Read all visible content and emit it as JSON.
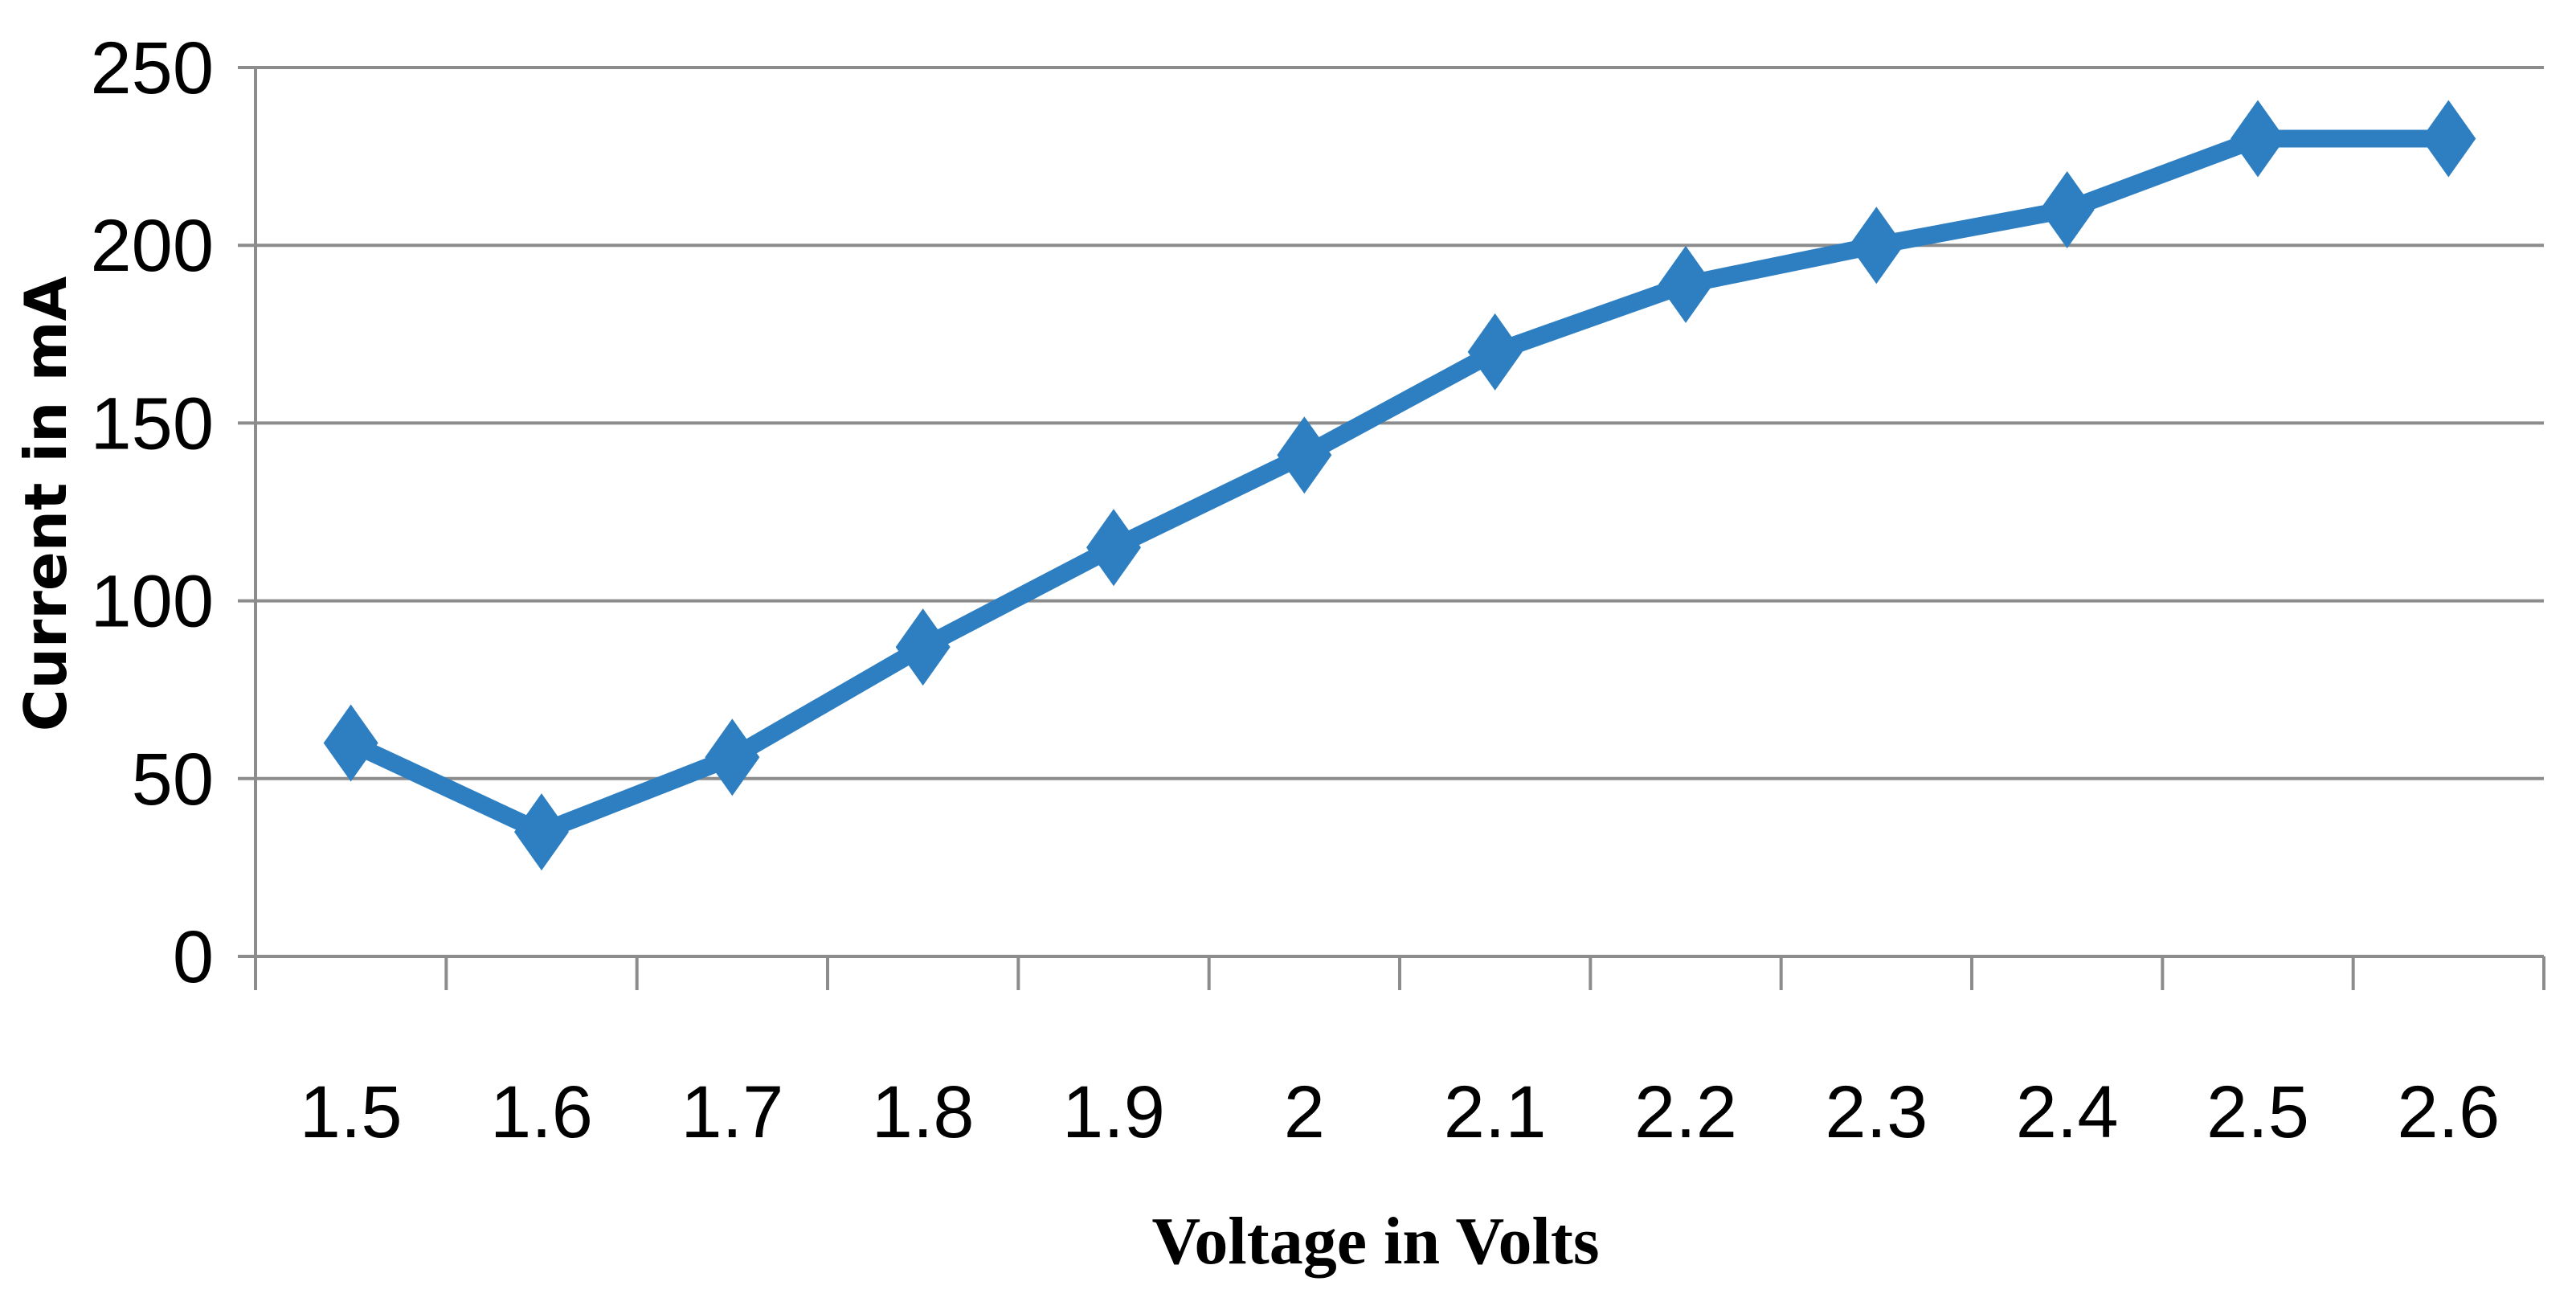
{
  "chart_data": {
    "type": "line",
    "title": "",
    "xlabel": "Voltage in Volts",
    "ylabel": "Current in mA",
    "categories": [
      "1.5",
      "1.6",
      "1.7",
      "1.8",
      "1.9",
      "2",
      "2.1",
      "2.2",
      "2.3",
      "2.4",
      "2.5",
      "2.6"
    ],
    "series": [
      {
        "values": [
          60,
          35,
          56,
          87,
          115,
          141,
          170,
          189,
          200,
          210,
          230,
          230
        ],
        "color": "#2e7fc2",
        "marker": "diamond"
      }
    ],
    "ylim": [
      0,
      250
    ],
    "yticks": [
      0,
      50,
      100,
      150,
      200,
      250
    ],
    "grid": "horizontal",
    "legend": "none"
  }
}
